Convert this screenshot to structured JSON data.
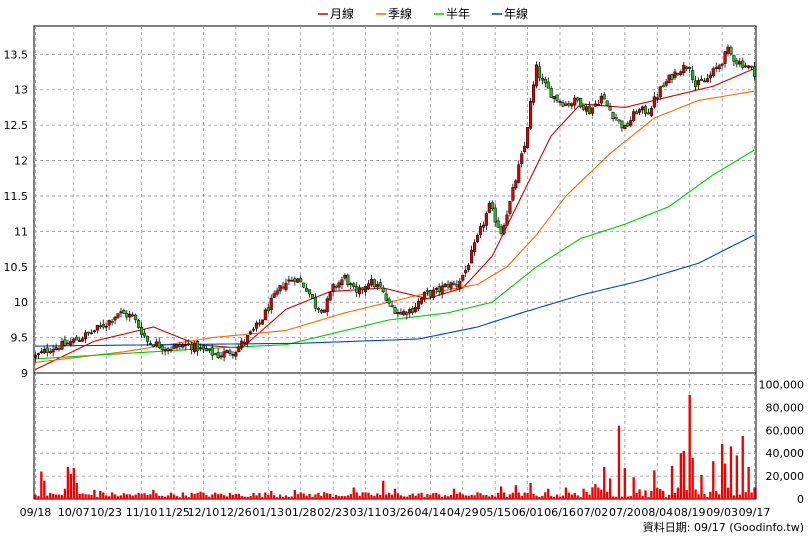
{
  "chart_data": [
    {
      "type": "candlestick",
      "title": "",
      "legend": [
        {
          "name": "月線",
          "color": "#cc0000"
        },
        {
          "name": "季線",
          "color": "#ff6600"
        },
        {
          "name": "半年",
          "color": "#00cc00"
        },
        {
          "name": "年線",
          "color": "#0044cc"
        }
      ],
      "legend_position": "top-center",
      "ylim": [
        9,
        13.9
      ],
      "y_ticks": [
        "13.5",
        "13",
        "12.5",
        "12",
        "11.5",
        "11",
        "10.5",
        "10",
        "9.5",
        "9"
      ],
      "grid": true,
      "x_ticks": [
        "09/18",
        "10/07",
        "10/23",
        "11/10",
        "11/25",
        "12/10",
        "12/26",
        "01/13",
        "01/28",
        "02/23",
        "03/11",
        "03/26",
        "04/14",
        "04/29",
        "05/15",
        "06/01",
        "06/16",
        "07/02",
        "07/20",
        "08/04",
        "08/19",
        "09/03",
        "09/17"
      ],
      "x_tick_index": [
        0,
        13,
        24,
        36,
        47,
        57,
        68,
        79,
        90,
        101,
        112,
        123,
        134,
        145,
        156,
        167,
        178,
        189,
        200,
        211,
        222,
        233,
        244
      ],
      "bar_count": 245,
      "price_anchors": [
        [
          0,
          9.23
        ],
        [
          5,
          9.35
        ],
        [
          10,
          9.4
        ],
        [
          18,
          9.55
        ],
        [
          24,
          9.7
        ],
        [
          28,
          9.85
        ],
        [
          33,
          9.8
        ],
        [
          38,
          9.45
        ],
        [
          45,
          9.35
        ],
        [
          52,
          9.4
        ],
        [
          58,
          9.3
        ],
        [
          62,
          9.25
        ],
        [
          68,
          9.33
        ],
        [
          72,
          9.5
        ],
        [
          76,
          9.7
        ],
        [
          80,
          10.0
        ],
        [
          84,
          10.25
        ],
        [
          88,
          10.35
        ],
        [
          92,
          10.2
        ],
        [
          95,
          9.95
        ],
        [
          98,
          9.9
        ],
        [
          101,
          10.2
        ],
        [
          105,
          10.35
        ],
        [
          109,
          10.1
        ],
        [
          113,
          10.3
        ],
        [
          117,
          10.2
        ],
        [
          120,
          9.95
        ],
        [
          124,
          9.85
        ],
        [
          128,
          9.9
        ],
        [
          132,
          10.1
        ],
        [
          136,
          10.15
        ],
        [
          140,
          10.25
        ],
        [
          143,
          10.25
        ],
        [
          146,
          10.45
        ],
        [
          150,
          10.9
        ],
        [
          154,
          11.35
        ],
        [
          158,
          11.0
        ],
        [
          161,
          11.4
        ],
        [
          164,
          11.9
        ],
        [
          166,
          12.2
        ],
        [
          168,
          12.8
        ],
        [
          170,
          13.3
        ],
        [
          172,
          13.1
        ],
        [
          176,
          12.9
        ],
        [
          180,
          12.8
        ],
        [
          184,
          12.85
        ],
        [
          188,
          12.7
        ],
        [
          192,
          12.9
        ],
        [
          196,
          12.65
        ],
        [
          200,
          12.45
        ],
        [
          204,
          12.7
        ],
        [
          208,
          12.7
        ],
        [
          212,
          13.0
        ],
        [
          216,
          13.2
        ],
        [
          219,
          13.3
        ],
        [
          222,
          13.35
        ],
        [
          224,
          13.05
        ],
        [
          228,
          13.15
        ],
        [
          232,
          13.35
        ],
        [
          235,
          13.55
        ],
        [
          238,
          13.4
        ],
        [
          241,
          13.35
        ],
        [
          244,
          13.25
        ]
      ],
      "moving_averages": {
        "月線": [
          [
            0,
            9.05
          ],
          [
            20,
            9.45
          ],
          [
            40,
            9.65
          ],
          [
            55,
            9.4
          ],
          [
            70,
            9.35
          ],
          [
            85,
            9.9
          ],
          [
            100,
            10.15
          ],
          [
            118,
            10.2
          ],
          [
            133,
            10.05
          ],
          [
            145,
            10.2
          ],
          [
            155,
            10.65
          ],
          [
            165,
            11.5
          ],
          [
            175,
            12.35
          ],
          [
            185,
            12.8
          ],
          [
            200,
            12.75
          ],
          [
            215,
            12.9
          ],
          [
            230,
            13.05
          ],
          [
            244,
            13.3
          ]
        ],
        "季線": [
          [
            0,
            9.15
          ],
          [
            30,
            9.3
          ],
          [
            60,
            9.5
          ],
          [
            85,
            9.6
          ],
          [
            105,
            9.85
          ],
          [
            130,
            10.1
          ],
          [
            150,
            10.25
          ],
          [
            160,
            10.5
          ],
          [
            170,
            10.95
          ],
          [
            180,
            11.5
          ],
          [
            195,
            12.1
          ],
          [
            210,
            12.6
          ],
          [
            225,
            12.85
          ],
          [
            244,
            12.98
          ]
        ],
        "半年": [
          [
            0,
            9.2
          ],
          [
            60,
            9.35
          ],
          [
            85,
            9.4
          ],
          [
            120,
            9.75
          ],
          [
            140,
            9.85
          ],
          [
            155,
            10.0
          ],
          [
            170,
            10.5
          ],
          [
            185,
            10.9
          ],
          [
            200,
            11.1
          ],
          [
            215,
            11.35
          ],
          [
            230,
            11.8
          ],
          [
            244,
            12.15
          ]
        ],
        "年線": [
          [
            0,
            9.38
          ],
          [
            90,
            9.42
          ],
          [
            130,
            9.48
          ],
          [
            150,
            9.65
          ],
          [
            165,
            9.85
          ],
          [
            185,
            10.1
          ],
          [
            205,
            10.3
          ],
          [
            225,
            10.55
          ],
          [
            244,
            10.95
          ]
        ]
      }
    },
    {
      "type": "bar",
      "title": "",
      "ylim": [
        0,
        110000
      ],
      "y_ticks": [
        "100,000",
        "80,000",
        "60,000",
        "40,000",
        "20,000",
        "0"
      ],
      "bar_color": "#ee0000",
      "volume_peaks": [
        [
          2,
          24000
        ],
        [
          3,
          16000
        ],
        [
          10,
          9000
        ],
        [
          11,
          28000
        ],
        [
          12,
          22000
        ],
        [
          13,
          27000
        ],
        [
          14,
          14000
        ],
        [
          20,
          8000
        ],
        [
          22,
          7000
        ],
        [
          40,
          8000
        ],
        [
          56,
          6500
        ],
        [
          80,
          7000
        ],
        [
          88,
          8000
        ],
        [
          98,
          6000
        ],
        [
          108,
          10000
        ],
        [
          118,
          16000
        ],
        [
          122,
          9000
        ],
        [
          142,
          9000
        ],
        [
          158,
          11000
        ],
        [
          163,
          12000
        ],
        [
          168,
          14000
        ],
        [
          174,
          9000
        ],
        [
          180,
          10000
        ],
        [
          186,
          9000
        ],
        [
          190,
          13000
        ],
        [
          193,
          28000
        ],
        [
          195,
          18000
        ],
        [
          198,
          64000
        ],
        [
          200,
          27000
        ],
        [
          203,
          19000
        ],
        [
          210,
          25000
        ],
        [
          216,
          29000
        ],
        [
          219,
          40000
        ],
        [
          220,
          42000
        ],
        [
          222,
          91000
        ],
        [
          223,
          36000
        ],
        [
          226,
          21000
        ],
        [
          230,
          33000
        ],
        [
          233,
          48000
        ],
        [
          234,
          31000
        ],
        [
          236,
          46000
        ],
        [
          238,
          38000
        ],
        [
          240,
          55000
        ],
        [
          242,
          28000
        ],
        [
          244,
          10000
        ]
      ]
    }
  ],
  "source_label": "資料日期: 09/17 (Goodinfo.tw)"
}
